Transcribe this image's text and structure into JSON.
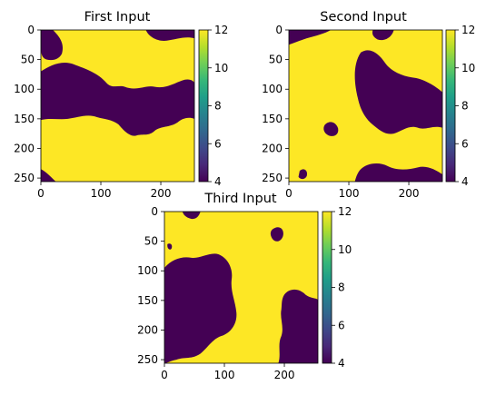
{
  "chart_data": [
    {
      "type": "heatmap",
      "title": "First Input",
      "xlabel": "",
      "ylabel": "",
      "xlim": [
        0,
        256
      ],
      "ylim": [
        256,
        0
      ],
      "x_ticks": [
        0,
        100,
        200
      ],
      "y_ticks": [
        0,
        50,
        100,
        150,
        200,
        250
      ],
      "colorbar": {
        "range": [
          4,
          12
        ],
        "ticks": [
          4,
          6,
          8,
          10,
          12
        ]
      },
      "values": [
        4,
        12
      ],
      "pattern": "first"
    },
    {
      "type": "heatmap",
      "title": "Second Input",
      "xlabel": "",
      "ylabel": "",
      "xlim": [
        0,
        256
      ],
      "ylim": [
        256,
        0
      ],
      "x_ticks": [
        0,
        100,
        200
      ],
      "y_ticks": [
        0,
        50,
        100,
        150,
        200,
        250
      ],
      "colorbar": {
        "range": [
          4,
          12
        ],
        "ticks": [
          4,
          6,
          8,
          10,
          12
        ]
      },
      "values": [
        4,
        12
      ],
      "pattern": "second"
    },
    {
      "type": "heatmap",
      "title": "Third Input",
      "xlabel": "",
      "ylabel": "",
      "xlim": [
        0,
        256
      ],
      "ylim": [
        256,
        0
      ],
      "x_ticks": [
        0,
        100,
        200
      ],
      "y_ticks": [
        0,
        50,
        100,
        150,
        200,
        250
      ],
      "colorbar": {
        "range": [
          4,
          12
        ],
        "ticks": [
          4,
          6,
          8,
          10,
          12
        ]
      },
      "values": [
        4,
        12
      ],
      "pattern": "third"
    }
  ],
  "colors": {
    "low": "#440154",
    "high": "#fde725",
    "colormap": "viridis"
  }
}
